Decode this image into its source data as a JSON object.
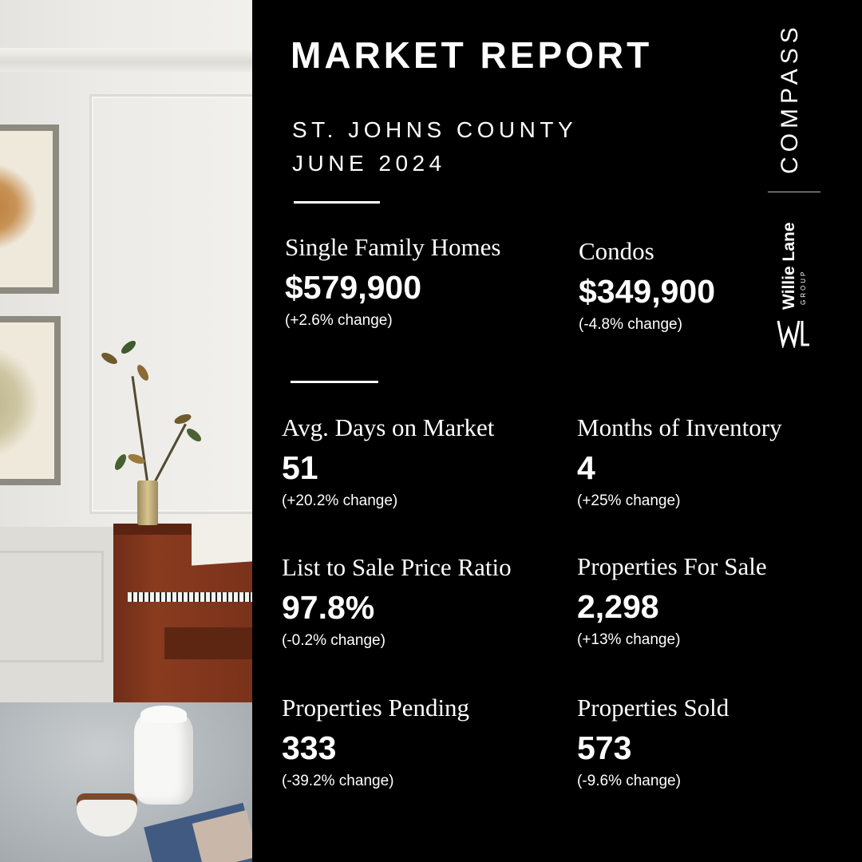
{
  "header": {
    "title": "MARKET REPORT",
    "location": "ST. JOHNS COUNTY",
    "period": "JUNE 2024"
  },
  "stats": [
    {
      "label": "Single Family Homes",
      "value": "$579,900",
      "change": "(+2.6% change)"
    },
    {
      "label": "Condos",
      "value": "$349,900",
      "change": "(-4.8% change)"
    },
    {
      "label": "Avg. Days on Market",
      "value": "51",
      "change": "(+20.2% change)"
    },
    {
      "label": "Months of Inventory",
      "value": "4",
      "change": "(+25% change)"
    },
    {
      "label": "List to Sale Price Ratio",
      "value": "97.8%",
      "change": "(-0.2% change)"
    },
    {
      "label": "Properties For Sale",
      "value": "2,298",
      "change": "(+13% change)"
    },
    {
      "label": "Properties Pending",
      "value": "333",
      "change": "(-39.2% change)"
    },
    {
      "label": "Properties Sold",
      "value": "573",
      "change": "(-9.6% change)"
    }
  ],
  "brand": {
    "compass": "COMPASS",
    "willie_lane": "Willie Lane",
    "willie_lane_sub": "GROUP",
    "logo_icons": [
      "compass-logo",
      "willie-lane-mark"
    ]
  },
  "photo": {
    "icons": [
      "framed-botanical-print",
      "upright-piano",
      "magnolia-branch-vase",
      "white-pitcher",
      "coffee-cup",
      "magazine"
    ]
  },
  "colors": {
    "background": "#000000",
    "text": "#ffffff",
    "piano": "#7a321a"
  }
}
